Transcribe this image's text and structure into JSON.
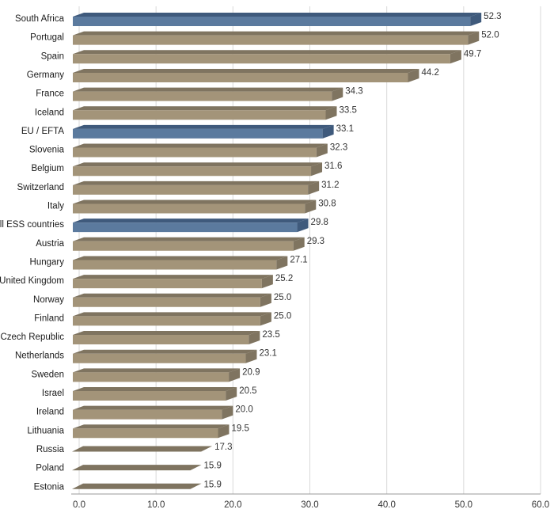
{
  "chart_data": {
    "type": "bar",
    "orientation": "horizontal",
    "style": "3d",
    "title": "",
    "xlabel": "",
    "ylabel": "",
    "xlim": [
      0,
      60
    ],
    "x_ticks": [
      0,
      10,
      20,
      30,
      40,
      50,
      60
    ],
    "x_tick_labels": [
      "0.0",
      "10.0",
      "20.0",
      "30.0",
      "40.0",
      "50.0",
      "60.0"
    ],
    "grid": true,
    "categories": [
      "South Africa",
      "Portugal",
      "Spain",
      "Germany",
      "France",
      "Iceland",
      "EU / EFTA",
      "Slovenia",
      "Belgium",
      "Switzerland",
      "Italy",
      "All ESS countries",
      "Austria",
      "Hungary",
      "United Kingdom",
      "Norway",
      "Finland",
      "Czech Republic",
      "Netherlands",
      "Sweden",
      "Israel",
      "Ireland",
      "Lithuania",
      "Russia",
      "Poland",
      "Estonia"
    ],
    "values": [
      52.3,
      52.0,
      49.7,
      44.2,
      34.3,
      33.5,
      33.1,
      32.3,
      31.6,
      31.2,
      30.8,
      29.8,
      29.3,
      27.1,
      25.2,
      25.0,
      25.0,
      23.5,
      23.1,
      20.9,
      20.5,
      20.0,
      19.5,
      17.3,
      15.9,
      15.9
    ],
    "value_labels": [
      "52.3",
      "52.0",
      "49.7",
      "44.2",
      "34.3",
      "33.5",
      "33.1",
      "32.3",
      "31.6",
      "31.2",
      "30.8",
      "29.8",
      "29.3",
      "27.1",
      "25.2",
      "25.0",
      "25.0",
      "23.5",
      "23.1",
      "20.9",
      "20.5",
      "20.0",
      "19.5",
      "17.3",
      "15.9",
      "15.9"
    ],
    "highlighted": [
      "South Africa",
      "EU / EFTA",
      "All ESS countries"
    ],
    "flat_bars": [
      "Russia",
      "Poland",
      "Estonia"
    ],
    "colors": {
      "default_front": "#a39479",
      "default_top": "#7f7460",
      "highlight_front": "#5b7a9e",
      "highlight_top": "#3f5a7c"
    }
  }
}
